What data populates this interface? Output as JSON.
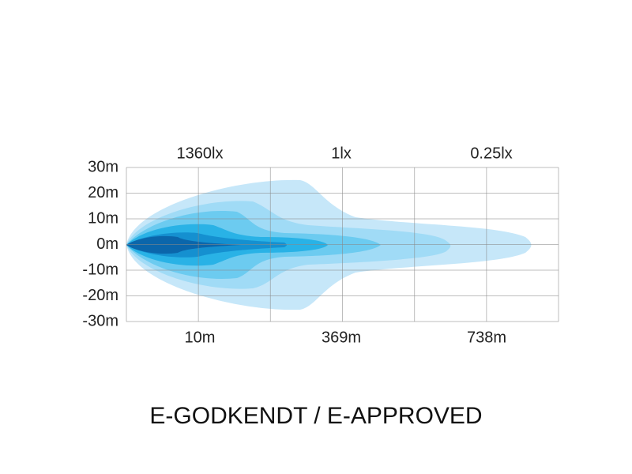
{
  "y_labels": [
    "30m",
    "20m",
    "10m",
    "0m",
    "-10m",
    "-20m",
    "-30m"
  ],
  "top_labels": [
    "1360lx",
    "1lx",
    "0.25lx"
  ],
  "bottom_labels": [
    "10m",
    "369m",
    "738m"
  ],
  "caption": "E-GODKENDT / E-APPROVED"
}
